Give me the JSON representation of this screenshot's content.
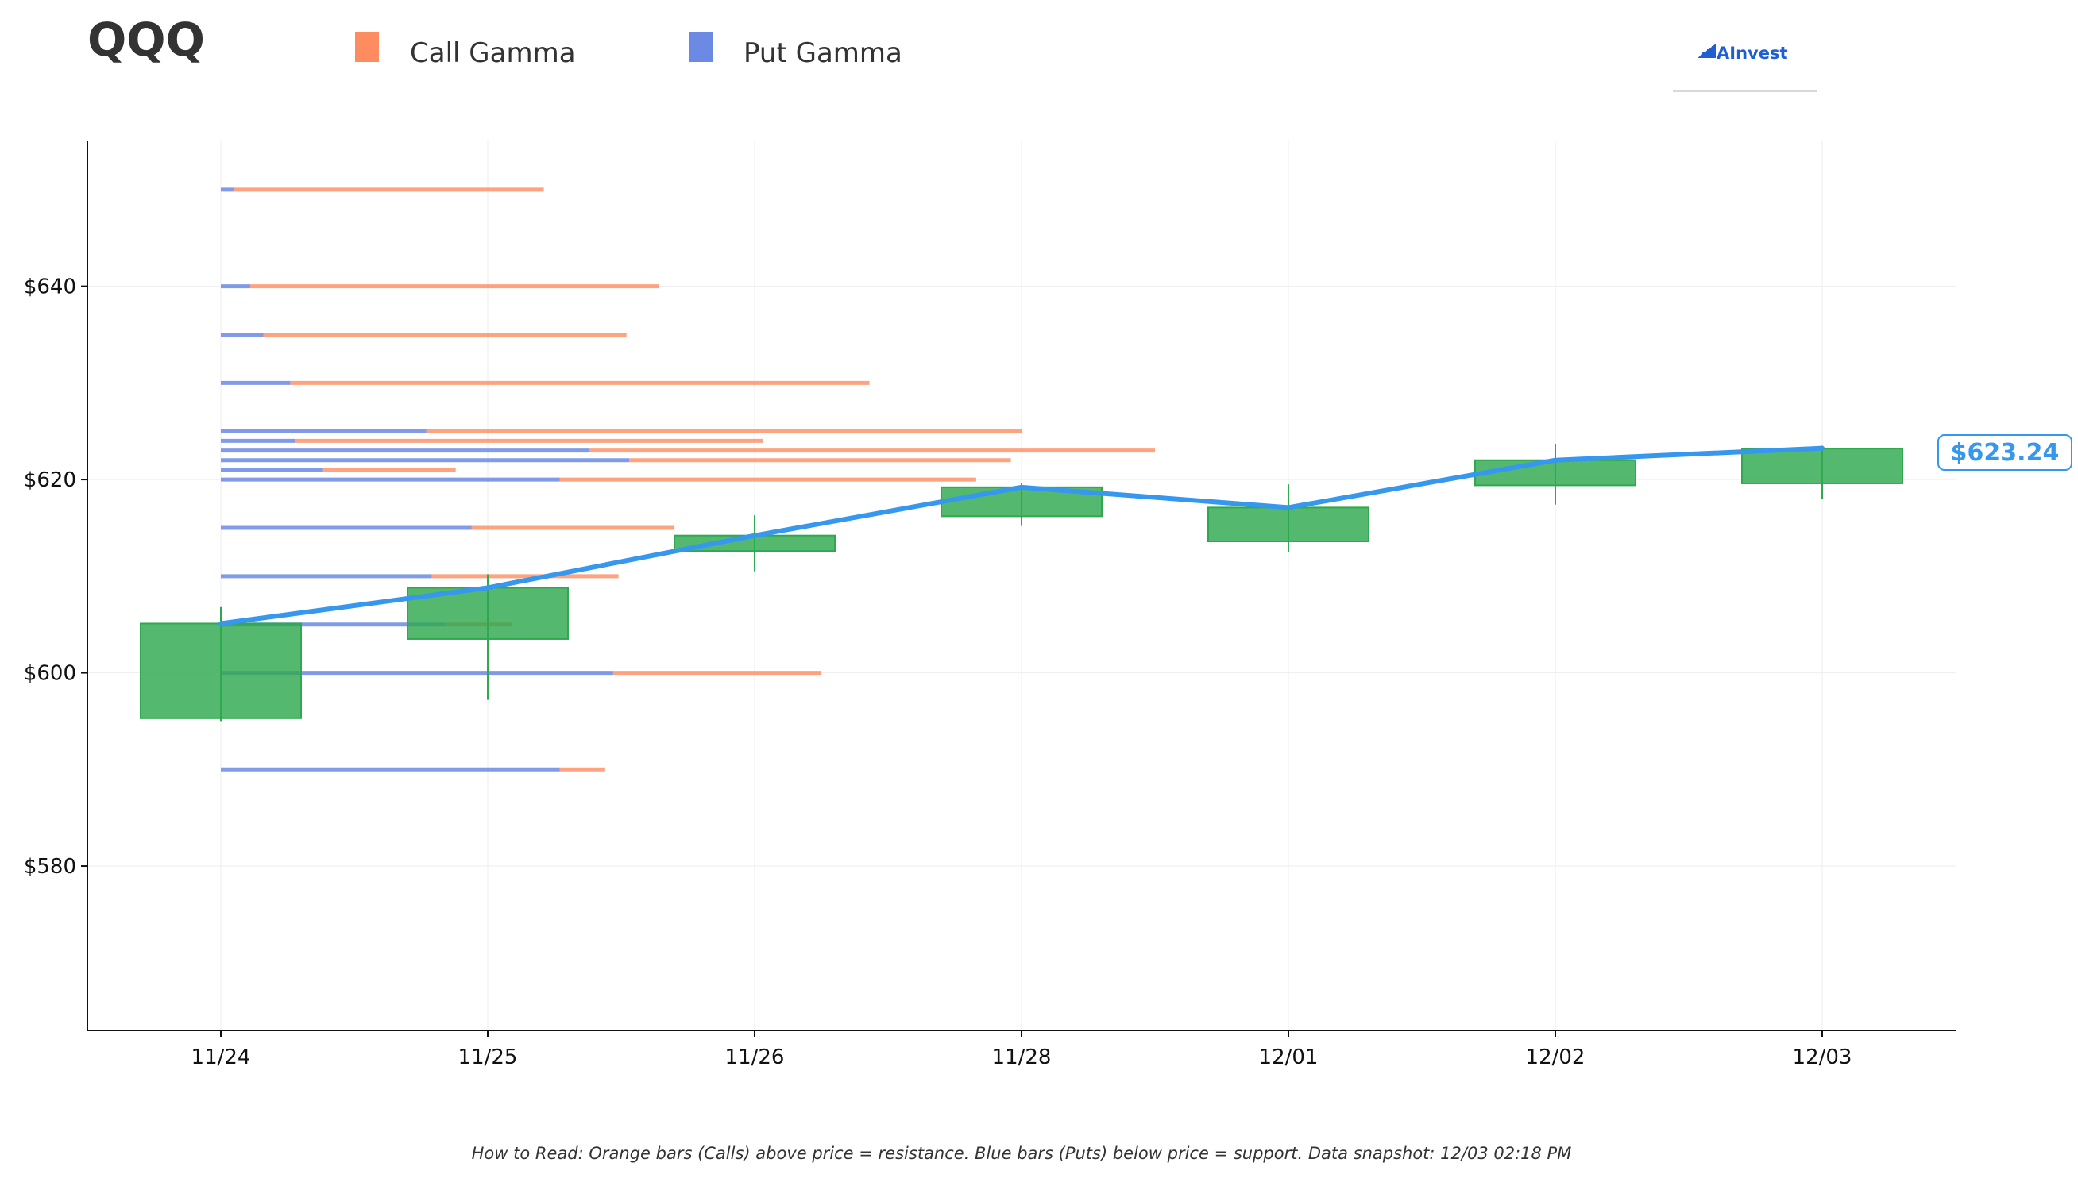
{
  "header": {
    "ticker": "QQQ",
    "logo_text": "AInvest"
  },
  "legend": {
    "call_label": "Call Gamma",
    "put_label": "Put Gamma"
  },
  "colors": {
    "call": "#FF8C61",
    "put": "#6C8AE4",
    "candle": "#2FA84F",
    "price_line": "#3598EE",
    "logo": "#1F5FD6",
    "grid": "#EEEEEE"
  },
  "footer": {
    "note": "How to Read: Orange bars (Calls) above price = resistance. Blue bars (Puts) below price = support. Data snapshot: 12/03 02:18 PM"
  },
  "chart_data": {
    "type": "candlestick",
    "title": "",
    "xlabel": "",
    "ylabel": "",
    "ylim": [
      563,
      655
    ],
    "y_ticks": [
      580,
      600,
      620,
      640
    ],
    "y_tick_labels": [
      "$580",
      "$600",
      "$620",
      "$640"
    ],
    "categories": [
      "11/24",
      "11/25",
      "11/26",
      "11/28",
      "12/01",
      "12/02",
      "12/03"
    ],
    "grid": true,
    "candles": [
      {
        "date": "11/24",
        "open": 595.3,
        "close": 605.1,
        "high": 606.8,
        "low": 595.0
      },
      {
        "date": "11/25",
        "open": 603.5,
        "close": 608.8,
        "high": 610.2,
        "low": 597.2
      },
      {
        "date": "11/26",
        "open": 612.6,
        "close": 614.2,
        "high": 616.3,
        "low": 610.5
      },
      {
        "date": "11/28",
        "open": 616.2,
        "close": 619.2,
        "high": 619.6,
        "low": 615.2
      },
      {
        "date": "12/01",
        "open": 613.6,
        "close": 617.1,
        "high": 619.5,
        "low": 612.5
      },
      {
        "date": "12/02",
        "open": 619.4,
        "close": 622.0,
        "high": 623.7,
        "low": 617.4
      },
      {
        "date": "12/03",
        "open": 619.6,
        "close": 623.2,
        "high": 623.5,
        "low": 618.0
      }
    ],
    "price_line": {
      "values": [
        605.1,
        608.8,
        614.2,
        619.2,
        617.1,
        622.0,
        623.24
      ],
      "last_label": "$623.24"
    },
    "gamma_levels": [
      {
        "strike": 650,
        "call": 1.21,
        "put": 0.05
      },
      {
        "strike": 640,
        "call": 1.64,
        "put": 0.11
      },
      {
        "strike": 635,
        "call": 1.52,
        "put": 0.16
      },
      {
        "strike": 630,
        "call": 2.43,
        "put": 0.26
      },
      {
        "strike": 625,
        "call": 3.0,
        "put": 0.77
      },
      {
        "strike": 624,
        "call": 2.03,
        "put": 0.28
      },
      {
        "strike": 623,
        "call": 3.5,
        "put": 1.38
      },
      {
        "strike": 622,
        "call": 2.96,
        "put": 1.53
      },
      {
        "strike": 621,
        "call": 0.88,
        "put": 0.38
      },
      {
        "strike": 620,
        "call": 2.83,
        "put": 1.27
      },
      {
        "strike": 615,
        "call": 1.7,
        "put": 0.94
      },
      {
        "strike": 610,
        "call": 1.49,
        "put": 0.79
      },
      {
        "strike": 605,
        "call": 1.09,
        "put": 0.84
      },
      {
        "strike": 600,
        "call": 2.25,
        "put": 1.47
      },
      {
        "strike": 590,
        "call": 1.44,
        "put": 1.27
      }
    ]
  }
}
